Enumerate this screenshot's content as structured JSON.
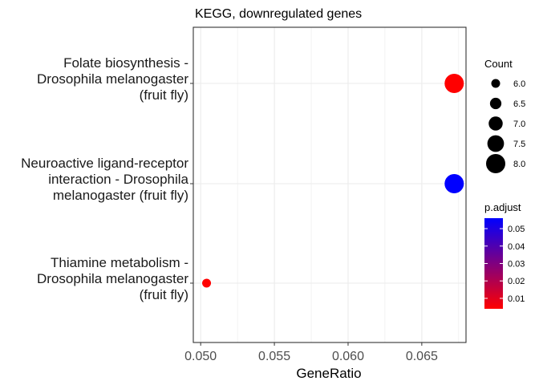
{
  "chart_data": {
    "type": "scatter",
    "title": "KEGG, downregulated genes",
    "xlabel": "GeneRatio",
    "ylabel": "",
    "xlim": [
      0.0495,
      0.068
    ],
    "x_ticks": [
      "0.050",
      "0.055",
      "0.060",
      "0.065"
    ],
    "grid": true,
    "categories": [
      [
        "Folate biosynthesis -",
        "Drosophila melanogaster",
        "(fruit fly)"
      ],
      [
        "Neuroactive ligand-receptor",
        "interaction - Drosophila",
        "melanogaster (fruit fly)"
      ],
      [
        "Thiamine metabolism -",
        "Drosophila melanogaster",
        "(fruit fly)"
      ]
    ],
    "points": [
      {
        "gene_ratio": 0.0672,
        "count": 8,
        "p_adjust": 0.004
      },
      {
        "gene_ratio": 0.0672,
        "count": 8,
        "p_adjust": 0.056
      },
      {
        "gene_ratio": 0.0504,
        "count": 6,
        "p_adjust": 0.004
      }
    ],
    "size_legend": {
      "title": "Count",
      "values": [
        6.0,
        6.5,
        7.0,
        7.5,
        8.0
      ],
      "labels": [
        "6.0",
        "6.5",
        "7.0",
        "7.5",
        "8.0"
      ]
    },
    "color_legend": {
      "title": "p.adjust",
      "range": [
        0.004,
        0.056
      ],
      "ticks": [
        0.01,
        0.02,
        0.03,
        0.04,
        0.05
      ],
      "labels": [
        "0.01",
        "0.02",
        "0.03",
        "0.04",
        "0.05"
      ],
      "low_color": "#FF0000",
      "high_color": "#0000FF"
    }
  }
}
